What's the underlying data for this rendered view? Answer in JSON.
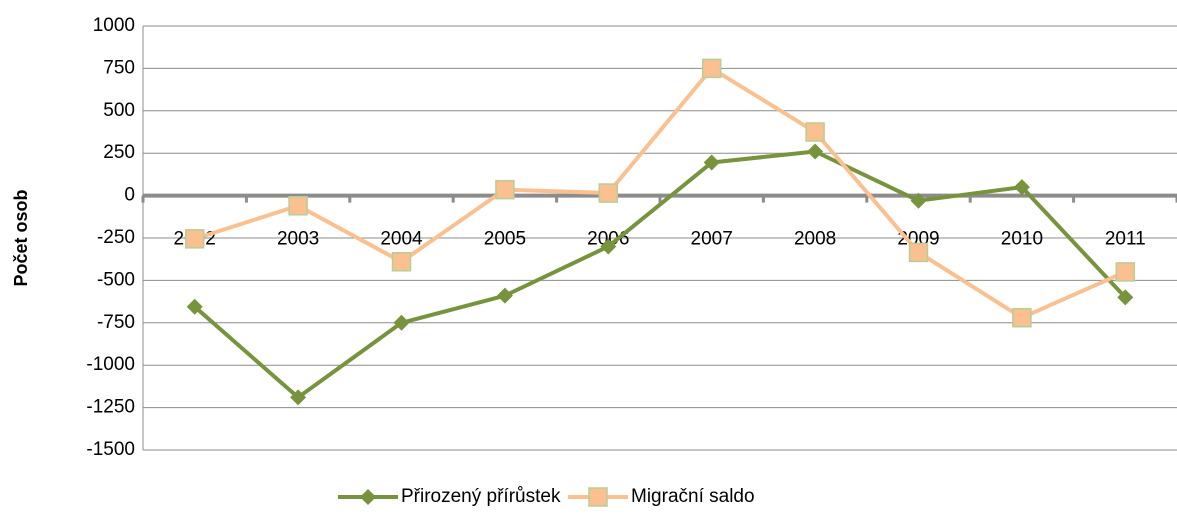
{
  "chart_data": {
    "type": "line",
    "categories": [
      "2002",
      "2003",
      "2004",
      "2005",
      "2006",
      "2007",
      "2008",
      "2009",
      "2010",
      "2011"
    ],
    "series": [
      {
        "name": "Přirozený přírůstek",
        "color": "#77933c",
        "marker": "diamond",
        "values": [
          -655,
          -1190,
          -750,
          -590,
          -300,
          195,
          260,
          -30,
          50,
          -600
        ]
      },
      {
        "name": "Migrační saldo",
        "color": "#fac090",
        "marker": "square",
        "values": [
          -255,
          -60,
          -390,
          35,
          15,
          750,
          375,
          -335,
          -720,
          -450
        ]
      }
    ],
    "ylabel": "Počet osob",
    "ylim": [
      -1500,
      1000
    ],
    "yticks": [
      -1500,
      -1250,
      -1000,
      -750,
      -500,
      -250,
      0,
      250,
      500,
      750,
      1000
    ],
    "grid": true,
    "legend": "bottom"
  }
}
